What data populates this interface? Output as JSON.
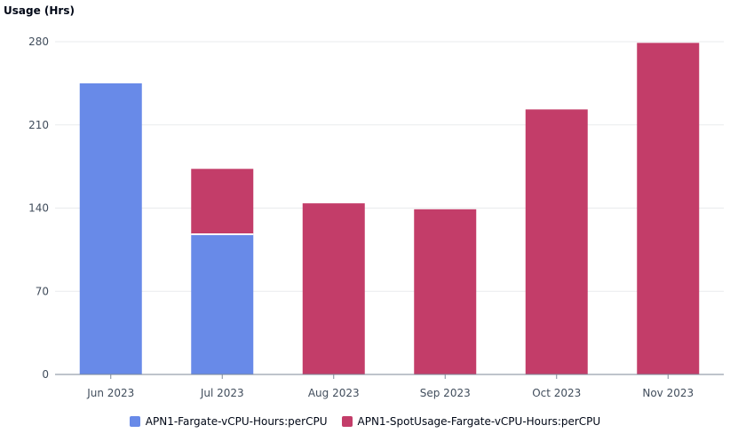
{
  "chart_data": {
    "type": "bar",
    "stacked": true,
    "ylabel": "Usage (Hrs)",
    "xlabel": "",
    "ylim": [
      0,
      280
    ],
    "yticks": [
      0,
      70,
      140,
      210,
      280
    ],
    "grid": true,
    "legend_position": "bottom",
    "categories": [
      "Jun 2023",
      "Jul 2023",
      "Aug 2023",
      "Sep 2023",
      "Oct 2023",
      "Nov 2023"
    ],
    "series": [
      {
        "name": "APN1-Fargate-vCPU-Hours:perCPU",
        "color": "#688ae8",
        "values": [
          245,
          118,
          0,
          0,
          0,
          0
        ]
      },
      {
        "name": "APN1-SpotUsage-Fargate-vCPU-Hours:perCPU",
        "color": "#c33d69",
        "values": [
          0,
          55,
          144,
          139,
          223,
          279
        ]
      }
    ]
  }
}
